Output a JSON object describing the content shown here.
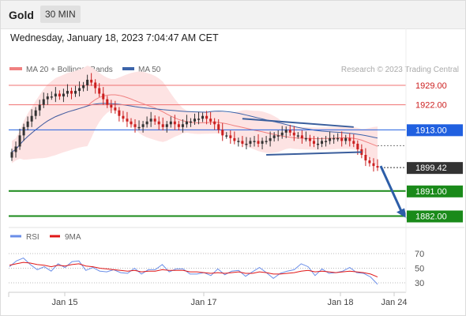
{
  "header": {
    "instrument": "Gold",
    "timeframe": "30 MIN",
    "datetime": "Wednesday, January 18, 2023 7:04:47 AM CET"
  },
  "legend": {
    "ma_bb": "MA 20 + Bollinger Bands",
    "ma50": "MA 50",
    "credit": "Research © 2023 Trading Central"
  },
  "rsi_legend": {
    "rsi": "RSI",
    "ma9": "9MA"
  },
  "colors": {
    "bb_fill": "#fde3e3",
    "ma20": "#f08080",
    "ma50": "#3c64aa",
    "up": "#333333",
    "down": "#cc2020",
    "resistance": "#f07070",
    "pivot": "#2060e0",
    "support": "#1a8a1a",
    "current": "#333333",
    "trendline": "#3a5e9c",
    "arrow": "#2d5ea8",
    "rsi": "#6a8ee8",
    "rsi_ma": "#e01818"
  },
  "chart_data": [
    {
      "type": "candlestick",
      "title": "",
      "xlabel": "",
      "ylabel": "",
      "ylim": [
        1876,
        1935
      ],
      "x_ticks": [
        "Jan 15",
        "Jan 17",
        "Jan 18",
        "Jan 24"
      ],
      "grid": false,
      "legend_position": "top-left",
      "candles": {
        "open": [
          1903,
          1905,
          1907,
          1911,
          1914,
          1916,
          1918,
          1920,
          1922,
          1924,
          1925,
          1925,
          1926,
          1925,
          1926,
          1927,
          1926,
          1927,
          1928,
          1929,
          1931,
          1930,
          1928,
          1926,
          1924,
          1922,
          1921,
          1920,
          1918,
          1917,
          1916,
          1915,
          1914,
          1914,
          1915,
          1916,
          1917,
          1916,
          1915,
          1914,
          1915,
          1916,
          1915,
          1914,
          1915,
          1916,
          1916,
          1917,
          1917,
          1918,
          1917,
          1916,
          1915,
          1913,
          1911,
          1911,
          1910,
          1909,
          1909,
          1908,
          1908,
          1909,
          1909,
          1908,
          1909,
          1909,
          1910,
          1911,
          1911,
          1912,
          1913,
          1912,
          1911,
          1911,
          1910,
          1910,
          1909,
          1908,
          1908,
          1909,
          1909,
          1910,
          1910,
          1910,
          1909,
          1910,
          1909,
          1908,
          1906,
          1904,
          1902,
          1901,
          1900
        ],
        "close": [
          1905,
          1907,
          1911,
          1914,
          1916,
          1918,
          1920,
          1922,
          1924,
          1925,
          1925,
          1926,
          1925,
          1926,
          1927,
          1926,
          1927,
          1928,
          1929,
          1931,
          1930,
          1928,
          1926,
          1924,
          1922,
          1921,
          1920,
          1918,
          1917,
          1916,
          1915,
          1914,
          1914,
          1915,
          1916,
          1917,
          1916,
          1915,
          1914,
          1915,
          1916,
          1915,
          1914,
          1915,
          1916,
          1916,
          1917,
          1917,
          1918,
          1917,
          1916,
          1915,
          1913,
          1911,
          1911,
          1910,
          1909,
          1909,
          1908,
          1908,
          1909,
          1909,
          1908,
          1909,
          1909,
          1910,
          1911,
          1911,
          1912,
          1913,
          1912,
          1911,
          1911,
          1910,
          1910,
          1909,
          1908,
          1908,
          1909,
          1909,
          1910,
          1910,
          1910,
          1909,
          1910,
          1909,
          1908,
          1906,
          1904,
          1902,
          1901,
          1900,
          1899.42
        ]
      },
      "indicators": [
        "MA 20 + Bollinger Bands",
        "MA 50"
      ],
      "levels": [
        {
          "value": 1929.0,
          "label": "1929.00",
          "kind": "resistance"
        },
        {
          "value": 1922.0,
          "label": "1922.00",
          "kind": "resistance"
        },
        {
          "value": 1913.0,
          "label": "1913.00",
          "kind": "pivot"
        },
        {
          "value": 1899.42,
          "label": "1899.42",
          "kind": "current"
        },
        {
          "value": 1891.0,
          "label": "1891.00",
          "kind": "support"
        },
        {
          "value": 1882.0,
          "label": "1882.00",
          "kind": "support"
        }
      ],
      "forecast_target": 1882.0
    },
    {
      "type": "line",
      "title": "",
      "series": [
        {
          "name": "RSI",
          "values": [
            52,
            60,
            64,
            55,
            48,
            52,
            46,
            56,
            51,
            59,
            60,
            47,
            51,
            46,
            45,
            48,
            44,
            43,
            50,
            42,
            48,
            48,
            55,
            45,
            49,
            49,
            42,
            42,
            44,
            40,
            49,
            41,
            46,
            47,
            39,
            45,
            51,
            44,
            36,
            43,
            46,
            48,
            56,
            52,
            40,
            49,
            43,
            44,
            46,
            51,
            44,
            43,
            38,
            28
          ]
        },
        {
          "name": "9MA",
          "values": [
            54,
            56,
            58,
            57,
            55,
            54,
            52,
            54,
            53,
            55,
            56,
            53,
            52,
            50,
            49,
            48,
            47,
            46,
            47,
            45,
            46,
            46,
            48,
            47,
            47,
            47,
            45,
            45,
            44,
            43,
            44,
            43,
            44,
            45,
            43,
            43,
            45,
            44,
            42,
            42,
            43,
            44,
            46,
            47,
            45,
            46,
            45,
            44,
            45,
            46,
            45,
            44,
            42,
            38
          ]
        }
      ],
      "ylim": [
        20,
        80
      ],
      "y_ticks": [
        "70",
        "50",
        "30"
      ]
    }
  ]
}
